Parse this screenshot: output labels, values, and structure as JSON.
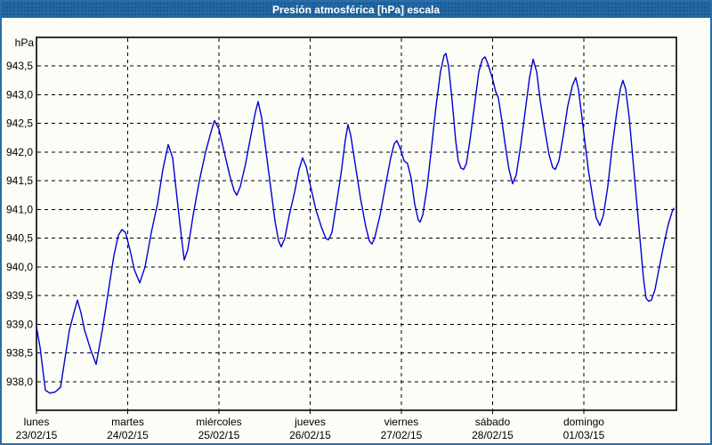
{
  "window": {
    "title": "Presión atmosférica [hPa] escala"
  },
  "colors": {
    "titlebar_bg": "#2168a5",
    "window_border": "#2a6da8",
    "title_text": "#ffffff",
    "grid": "#000000",
    "line": "#0000d2",
    "background": "#fcfdf7"
  },
  "chart_data": {
    "type": "line",
    "title": "Presión atmosférica [hPa] escala",
    "grid": "dashed",
    "legend": "none",
    "y_axis": {
      "unit": "hPa",
      "min": 937.5,
      "max": 944.0,
      "tick_step": 0.5,
      "ticks": [
        {
          "value": 943.5,
          "label": "943,5"
        },
        {
          "value": 943.0,
          "label": "943,0"
        },
        {
          "value": 942.5,
          "label": "942,5"
        },
        {
          "value": 942.0,
          "label": "942,0"
        },
        {
          "value": 941.5,
          "label": "941,5"
        },
        {
          "value": 941.0,
          "label": "941,0"
        },
        {
          "value": 940.5,
          "label": "940,5"
        },
        {
          "value": 940.0,
          "label": "940,0"
        },
        {
          "value": 939.5,
          "label": "939,5"
        },
        {
          "value": 939.0,
          "label": "939,0"
        },
        {
          "value": 938.5,
          "label": "938,5"
        },
        {
          "value": 938.0,
          "label": "938,0"
        }
      ]
    },
    "x_axis": {
      "span_days": 7.015,
      "ticks": [
        {
          "weekday": "lunes",
          "date": "23/02/15"
        },
        {
          "weekday": "martes",
          "date": "24/02/15"
        },
        {
          "weekday": "miércoles",
          "date": "25/02/15"
        },
        {
          "weekday": "jueves",
          "date": "26/02/15"
        },
        {
          "weekday": "viernes",
          "date": "27/02/15"
        },
        {
          "weekday": "sábado",
          "date": "28/02/15"
        },
        {
          "weekday": "domingo",
          "date": "01/03/15"
        }
      ]
    },
    "series": [
      {
        "name": "Presión atmosférica",
        "unit": "hPa",
        "color": "#0000d2",
        "points_days_hpa": [
          [
            0.0,
            938.95
          ],
          [
            0.039,
            938.6
          ],
          [
            0.098,
            937.85
          ],
          [
            0.146,
            937.8
          ],
          [
            0.205,
            937.82
          ],
          [
            0.263,
            937.9
          ],
          [
            0.302,
            938.3
          ],
          [
            0.361,
            938.9
          ],
          [
            0.41,
            939.2
          ],
          [
            0.449,
            939.42
          ],
          [
            0.488,
            939.2
          ],
          [
            0.527,
            938.9
          ],
          [
            0.595,
            938.55
          ],
          [
            0.654,
            938.3
          ],
          [
            0.722,
            938.9
          ],
          [
            0.79,
            939.6
          ],
          [
            0.849,
            940.2
          ],
          [
            0.898,
            940.55
          ],
          [
            0.937,
            940.65
          ],
          [
            0.976,
            940.6
          ],
          [
            1.024,
            940.3
          ],
          [
            1.073,
            939.95
          ],
          [
            1.132,
            939.72
          ],
          [
            1.19,
            940.0
          ],
          [
            1.259,
            940.6
          ],
          [
            1.327,
            941.1
          ],
          [
            1.385,
            941.7
          ],
          [
            1.444,
            942.13
          ],
          [
            1.493,
            941.9
          ],
          [
            1.541,
            941.2
          ],
          [
            1.59,
            940.5
          ],
          [
            1.62,
            940.12
          ],
          [
            1.659,
            940.3
          ],
          [
            1.717,
            940.9
          ],
          [
            1.785,
            941.5
          ],
          [
            1.854,
            942.0
          ],
          [
            1.912,
            942.35
          ],
          [
            1.951,
            942.55
          ],
          [
            2.0,
            942.4
          ],
          [
            2.059,
            942.0
          ],
          [
            2.117,
            941.6
          ],
          [
            2.166,
            941.33
          ],
          [
            2.195,
            941.25
          ],
          [
            2.234,
            941.4
          ],
          [
            2.293,
            941.8
          ],
          [
            2.351,
            942.3
          ],
          [
            2.4,
            942.7
          ],
          [
            2.429,
            942.88
          ],
          [
            2.468,
            942.6
          ],
          [
            2.517,
            942.0
          ],
          [
            2.566,
            941.4
          ],
          [
            2.615,
            940.8
          ],
          [
            2.654,
            940.45
          ],
          [
            2.683,
            940.35
          ],
          [
            2.722,
            940.5
          ],
          [
            2.771,
            940.9
          ],
          [
            2.829,
            941.3
          ],
          [
            2.878,
            941.7
          ],
          [
            2.917,
            941.9
          ],
          [
            2.956,
            941.75
          ],
          [
            3.005,
            941.4
          ],
          [
            3.063,
            941.0
          ],
          [
            3.122,
            940.7
          ],
          [
            3.171,
            940.5
          ],
          [
            3.2,
            940.47
          ],
          [
            3.239,
            940.6
          ],
          [
            3.278,
            941.0
          ],
          [
            3.337,
            941.6
          ],
          [
            3.385,
            942.2
          ],
          [
            3.415,
            942.48
          ],
          [
            3.444,
            942.3
          ],
          [
            3.493,
            941.8
          ],
          [
            3.551,
            941.2
          ],
          [
            3.61,
            940.7
          ],
          [
            3.649,
            940.45
          ],
          [
            3.678,
            940.4
          ],
          [
            3.707,
            940.5
          ],
          [
            3.766,
            940.9
          ],
          [
            3.824,
            941.4
          ],
          [
            3.883,
            941.9
          ],
          [
            3.922,
            942.15
          ],
          [
            3.951,
            942.2
          ],
          [
            3.99,
            942.05
          ],
          [
            4.029,
            941.85
          ],
          [
            4.068,
            941.8
          ],
          [
            4.107,
            941.55
          ],
          [
            4.146,
            941.1
          ],
          [
            4.185,
            940.82
          ],
          [
            4.205,
            940.78
          ],
          [
            4.234,
            940.9
          ],
          [
            4.283,
            941.4
          ],
          [
            4.332,
            942.1
          ],
          [
            4.38,
            942.8
          ],
          [
            4.429,
            943.4
          ],
          [
            4.468,
            943.68
          ],
          [
            4.488,
            943.72
          ],
          [
            4.517,
            943.5
          ],
          [
            4.556,
            942.9
          ],
          [
            4.595,
            942.2
          ],
          [
            4.624,
            941.85
          ],
          [
            4.654,
            941.72
          ],
          [
            4.683,
            941.7
          ],
          [
            4.712,
            941.8
          ],
          [
            4.751,
            942.2
          ],
          [
            4.8,
            942.8
          ],
          [
            4.849,
            943.4
          ],
          [
            4.888,
            943.62
          ],
          [
            4.917,
            943.66
          ],
          [
            4.946,
            943.55
          ],
          [
            4.995,
            943.3
          ],
          [
            5.034,
            943.05
          ],
          [
            5.063,
            942.95
          ],
          [
            5.102,
            942.55
          ],
          [
            5.141,
            942.1
          ],
          [
            5.18,
            941.7
          ],
          [
            5.22,
            941.45
          ],
          [
            5.259,
            941.6
          ],
          [
            5.307,
            942.1
          ],
          [
            5.356,
            942.7
          ],
          [
            5.405,
            943.3
          ],
          [
            5.444,
            943.62
          ],
          [
            5.483,
            943.4
          ],
          [
            5.522,
            942.9
          ],
          [
            5.571,
            942.4
          ],
          [
            5.62,
            941.95
          ],
          [
            5.659,
            941.73
          ],
          [
            5.688,
            941.7
          ],
          [
            5.727,
            941.85
          ],
          [
            5.776,
            942.3
          ],
          [
            5.824,
            942.8
          ],
          [
            5.873,
            943.15
          ],
          [
            5.912,
            943.3
          ],
          [
            5.941,
            943.1
          ],
          [
            5.98,
            942.6
          ],
          [
            6.01,
            942.2
          ],
          [
            6.049,
            941.7
          ],
          [
            6.098,
            941.2
          ],
          [
            6.137,
            940.85
          ],
          [
            6.176,
            940.72
          ],
          [
            6.215,
            940.9
          ],
          [
            6.263,
            941.4
          ],
          [
            6.312,
            942.1
          ],
          [
            6.361,
            942.7
          ],
          [
            6.4,
            943.1
          ],
          [
            6.429,
            943.25
          ],
          [
            6.459,
            943.1
          ],
          [
            6.498,
            942.6
          ],
          [
            6.537,
            941.9
          ],
          [
            6.576,
            941.2
          ],
          [
            6.615,
            940.5
          ],
          [
            6.654,
            939.8
          ],
          [
            6.683,
            939.45
          ],
          [
            6.712,
            939.4
          ],
          [
            6.741,
            939.42
          ],
          [
            6.78,
            939.6
          ],
          [
            6.829,
            940.0
          ],
          [
            6.878,
            940.4
          ],
          [
            6.927,
            940.75
          ],
          [
            6.966,
            940.95
          ],
          [
            6.985,
            941.02
          ]
        ]
      }
    ]
  }
}
